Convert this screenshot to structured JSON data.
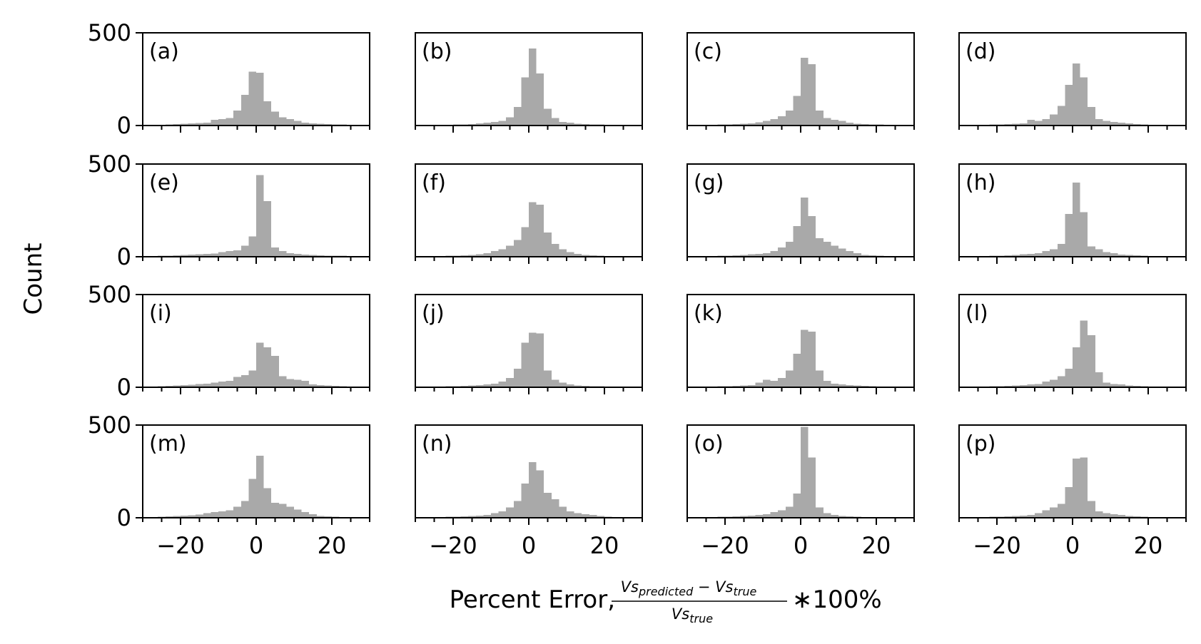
{
  "figure": {
    "ylabel": "Count",
    "xlabel_prefix": "Percent Error, ",
    "xlabel_numerator_a": "Vs",
    "xlabel_numerator_a_sub": "predicted",
    "xlabel_numerator_minus": " − ",
    "xlabel_numerator_b": "Vs",
    "xlabel_numerator_b_sub": "true",
    "xlabel_denominator": "Vs",
    "xlabel_denominator_sub": "true",
    "xlabel_suffix": "∗100%",
    "bar_color": "#a9a9a9"
  },
  "chart_data": {
    "type": "bar",
    "histogram": true,
    "bin_edges": [
      -28,
      -26,
      -24,
      -22,
      -20,
      -18,
      -16,
      -14,
      -12,
      -10,
      -8,
      -6,
      -4,
      -2,
      0,
      2,
      4,
      6,
      8,
      10,
      12,
      14,
      16,
      18,
      20,
      22,
      24,
      26,
      28
    ],
    "xlim": [
      -30,
      30
    ],
    "ylim": [
      0,
      500
    ],
    "xticks": [
      -20,
      0,
      20
    ],
    "xtick_labels": [
      "−20",
      "0",
      "20"
    ],
    "yticks": [
      0,
      500
    ],
    "ytick_labels": [
      "0",
      "500"
    ],
    "panels": [
      {
        "label": "(a)",
        "values": [
          4,
          3,
          5,
          8,
          10,
          12,
          14,
          16,
          30,
          35,
          40,
          80,
          165,
          290,
          285,
          130,
          75,
          45,
          35,
          25,
          15,
          12,
          10,
          8,
          6,
          5,
          4,
          3
        ]
      },
      {
        "label": "(b)",
        "values": [
          2,
          2,
          3,
          4,
          5,
          6,
          8,
          12,
          15,
          20,
          25,
          45,
          100,
          260,
          415,
          280,
          90,
          40,
          20,
          15,
          10,
          8,
          6,
          5,
          4,
          3,
          2,
          2
        ]
      },
      {
        "label": "(c)",
        "values": [
          2,
          3,
          4,
          5,
          6,
          8,
          10,
          12,
          18,
          25,
          35,
          50,
          80,
          160,
          365,
          330,
          80,
          40,
          30,
          25,
          15,
          10,
          8,
          6,
          5,
          4,
          3,
          2
        ]
      },
      {
        "label": "(d)",
        "values": [
          2,
          3,
          4,
          5,
          6,
          8,
          10,
          12,
          30,
          25,
          35,
          60,
          105,
          220,
          335,
          260,
          100,
          35,
          25,
          20,
          15,
          12,
          8,
          6,
          4,
          3,
          3,
          2
        ]
      },
      {
        "label": "(e)",
        "values": [
          4,
          5,
          6,
          8,
          10,
          12,
          14,
          16,
          18,
          25,
          30,
          35,
          60,
          110,
          440,
          300,
          50,
          30,
          20,
          15,
          12,
          10,
          8,
          6,
          6,
          5,
          4,
          3
        ]
      },
      {
        "label": "(f)",
        "values": [
          2,
          3,
          4,
          5,
          6,
          8,
          10,
          14,
          20,
          30,
          40,
          60,
          90,
          160,
          295,
          280,
          130,
          70,
          40,
          25,
          15,
          10,
          8,
          6,
          4,
          3,
          2,
          2
        ]
      },
      {
        "label": "(g)",
        "values": [
          2,
          3,
          4,
          5,
          6,
          8,
          10,
          14,
          15,
          20,
          30,
          50,
          80,
          165,
          320,
          220,
          100,
          80,
          60,
          45,
          30,
          20,
          10,
          8,
          6,
          4,
          3,
          2
        ]
      },
      {
        "label": "(h)",
        "values": [
          2,
          3,
          4,
          5,
          6,
          8,
          10,
          14,
          15,
          20,
          30,
          40,
          70,
          230,
          400,
          240,
          55,
          40,
          25,
          20,
          12,
          10,
          8,
          6,
          4,
          3,
          2,
          2
        ]
      },
      {
        "label": "(i)",
        "values": [
          4,
          6,
          8,
          10,
          12,
          14,
          18,
          20,
          25,
          30,
          35,
          55,
          65,
          90,
          240,
          215,
          170,
          60,
          45,
          40,
          35,
          15,
          12,
          10,
          8,
          6,
          4,
          3
        ]
      },
      {
        "label": "(j)",
        "values": [
          2,
          3,
          4,
          5,
          6,
          8,
          10,
          12,
          15,
          20,
          30,
          50,
          100,
          240,
          295,
          290,
          90,
          40,
          25,
          15,
          10,
          8,
          6,
          5,
          4,
          3,
          2,
          2
        ]
      },
      {
        "label": "(k)",
        "values": [
          2,
          3,
          4,
          5,
          6,
          8,
          10,
          12,
          25,
          40,
          35,
          50,
          90,
          180,
          310,
          300,
          90,
          35,
          20,
          15,
          12,
          10,
          8,
          6,
          4,
          3,
          2,
          2
        ]
      },
      {
        "label": "(l)",
        "values": [
          2,
          3,
          4,
          5,
          6,
          8,
          10,
          12,
          15,
          18,
          30,
          40,
          60,
          100,
          215,
          360,
          280,
          80,
          25,
          18,
          15,
          10,
          8,
          6,
          4,
          3,
          2,
          2
        ]
      },
      {
        "label": "(m)",
        "values": [
          4,
          6,
          8,
          10,
          12,
          14,
          18,
          25,
          30,
          35,
          40,
          60,
          90,
          210,
          335,
          160,
          80,
          75,
          60,
          45,
          30,
          20,
          10,
          8,
          6,
          4,
          3,
          2
        ]
      },
      {
        "label": "(n)",
        "values": [
          2,
          3,
          4,
          5,
          6,
          8,
          10,
          12,
          15,
          25,
          35,
          55,
          90,
          185,
          300,
          255,
          135,
          100,
          60,
          35,
          25,
          20,
          15,
          10,
          6,
          4,
          3,
          2
        ]
      },
      {
        "label": "(o)",
        "values": [
          2,
          3,
          4,
          5,
          6,
          8,
          10,
          12,
          15,
          20,
          30,
          40,
          60,
          130,
          490,
          325,
          55,
          25,
          15,
          10,
          8,
          6,
          4,
          3,
          2,
          2,
          2,
          2
        ]
      },
      {
        "label": "(p)",
        "values": [
          2,
          3,
          4,
          5,
          6,
          8,
          10,
          12,
          15,
          25,
          40,
          55,
          75,
          165,
          320,
          325,
          90,
          35,
          25,
          20,
          15,
          10,
          8,
          6,
          4,
          3,
          2,
          2
        ]
      }
    ]
  }
}
